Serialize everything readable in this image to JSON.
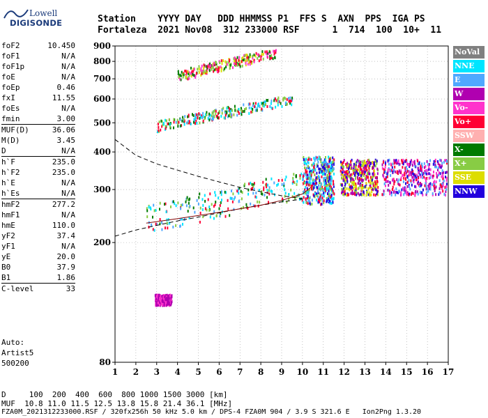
{
  "logo": {
    "line1": "Lowell",
    "line2": "DIGISONDE"
  },
  "header": {
    "labels": "Station    YYYY DAY   DDD HHMMSS P1  FFS S  AXN  PPS  IGA PS",
    "values": "Fortaleza  2021 Nov08  312 233000 RSF      1  714  100  10+  11"
  },
  "params": [
    {
      "k": "foF2",
      "v": "10.450",
      "sep": false
    },
    {
      "k": "foF1",
      "v": "N/A",
      "sep": false
    },
    {
      "k": "foF1p",
      "v": "N/A",
      "sep": false
    },
    {
      "k": "foE",
      "v": "N/A",
      "sep": false
    },
    {
      "k": "foEp",
      "v": "0.46",
      "sep": false
    },
    {
      "k": "fxI",
      "v": "11.55",
      "sep": false
    },
    {
      "k": "foEs",
      "v": "N/A",
      "sep": false
    },
    {
      "k": "fmin",
      "v": "3.00",
      "sep": false
    },
    {
      "k": "MUF(D)",
      "v": "36.06",
      "sep": true
    },
    {
      "k": "M(D)",
      "v": "3.45",
      "sep": false
    },
    {
      "k": "D",
      "v": "N/A",
      "sep": false
    },
    {
      "k": "h`F",
      "v": "235.0",
      "sep": true
    },
    {
      "k": "h`F2",
      "v": "235.0",
      "sep": false
    },
    {
      "k": "h`E",
      "v": "N/A",
      "sep": false
    },
    {
      "k": "h`Es",
      "v": "N/A",
      "sep": false
    },
    {
      "k": "hmF2",
      "v": "277.2",
      "sep": true
    },
    {
      "k": "hmF1",
      "v": "N/A",
      "sep": false
    },
    {
      "k": "hmE",
      "v": "110.0",
      "sep": false
    },
    {
      "k": "yF2",
      "v": "37.4",
      "sep": false
    },
    {
      "k": "yF1",
      "v": "N/A",
      "sep": false
    },
    {
      "k": "yE",
      "v": "20.0",
      "sep": false
    },
    {
      "k": "B0",
      "v": "37.9",
      "sep": false
    },
    {
      "k": "B1",
      "v": "1.86",
      "sep": false
    },
    {
      "k": "C-level",
      "v": "33",
      "sep": true
    }
  ],
  "auto": {
    "line1": "Auto:",
    "line2": "Artist5",
    "line3": "500200"
  },
  "legend": [
    {
      "label": "NoVal",
      "color": "#808080"
    },
    {
      "label": "NNE",
      "color": "#00e5ff"
    },
    {
      "label": "E",
      "color": "#4fa8ff"
    },
    {
      "label": "W",
      "color": "#b000b0"
    },
    {
      "label": "Vo-",
      "color": "#ff33cc"
    },
    {
      "label": "Vo+",
      "color": "#ff0033"
    },
    {
      "label": "SSW",
      "color": "#ffb0b0"
    },
    {
      "label": "X-",
      "color": "#007a00"
    },
    {
      "label": "X+",
      "color": "#88cc44"
    },
    {
      "label": "SSE",
      "color": "#dddd00"
    },
    {
      "label": "NNW",
      "color": "#2200dd"
    }
  ],
  "footer": {
    "d_line": "D     100  200  400  600  800 1000 1500 3000 [km]",
    "muf_line": "MUF  10.8 11.0 11.5 12.5 13.8 15.8 21.4 36.1 [MHz]",
    "file_line": "FZA0M_2021312233000.RSF / 320fx256h 50 kHz 5.0 km / DPS-4 FZA0M 904 / 3.9 S 321.6 E   Ion2Png 1.3.20"
  },
  "chart_data": {
    "type": "scatter",
    "xlabel": "",
    "ylabel": "",
    "xlim": [
      1,
      17
    ],
    "ylim": [
      80,
      900
    ],
    "xticks": [
      1,
      2,
      3,
      4,
      5,
      6,
      7,
      8,
      9,
      10,
      11,
      12,
      13,
      14,
      15,
      16,
      17
    ],
    "yticks": [
      80,
      200,
      300,
      400,
      500,
      600,
      700,
      800,
      900
    ],
    "y_scale": "log",
    "grid": true,
    "legend_placement": "right",
    "traces": [
      {
        "name": "F2 trace",
        "x_range": [
          2.5,
          10.6
        ],
        "height_start": 240,
        "height_end": 320,
        "colors": [
          "#ff0033",
          "#88cc44",
          "#4fa8ff",
          "#00e5ff",
          "#007a00"
        ]
      },
      {
        "name": "F2 spread",
        "x_range": [
          10.0,
          11.5
        ],
        "height_range": [
          270,
          390
        ],
        "colors": [
          "#2200dd",
          "#4fa8ff",
          "#ff0033",
          "#00e5ff",
          "#88cc44"
        ]
      },
      {
        "name": "F2 spread",
        "x_range": [
          11.8,
          13.6
        ],
        "height_range": [
          290,
          380
        ],
        "colors": [
          "#ff0033",
          "#2200dd",
          "#88cc44",
          "#b000b0",
          "#dddd00"
        ]
      },
      {
        "name": "F2 spread",
        "x_range": [
          13.8,
          16.9
        ],
        "height_range": [
          290,
          380
        ],
        "colors": [
          "#2200dd",
          "#ff0033",
          "#b000b0",
          "#ff33cc",
          "#4fa8ff"
        ]
      },
      {
        "name": "second hop",
        "x_range": [
          3.0,
          9.5
        ],
        "height_start": 490,
        "height_end": 600,
        "colors": [
          "#00e5ff",
          "#4fa8ff",
          "#ff0033",
          "#88cc44",
          "#007a00"
        ]
      },
      {
        "name": "third hop",
        "x_range": [
          4.0,
          8.7
        ],
        "height_start": 720,
        "height_end": 860,
        "colors": [
          "#ff0033",
          "#88cc44",
          "#007a00",
          "#ff33cc",
          "#dddd00"
        ]
      },
      {
        "name": "low echo",
        "x_range": [
          2.9,
          3.7
        ],
        "height_start": 130,
        "height_end": 130,
        "colors": [
          "#b000b0",
          "#ff33cc"
        ]
      }
    ],
    "lines": [
      {
        "name": "profile upper",
        "style": "dashed",
        "x": [
          1,
          2,
          3,
          4,
          5,
          6,
          7,
          8,
          9,
          10
        ],
        "y": [
          440,
          390,
          365,
          348,
          332,
          318,
          305,
          295,
          286,
          280
        ]
      },
      {
        "name": "profile lower",
        "style": "dashed",
        "x": [
          1,
          2,
          3,
          4,
          5,
          6,
          7,
          8,
          9,
          10
        ],
        "y": [
          210,
          220,
          228,
          236,
          243,
          251,
          259,
          266,
          273,
          279
        ]
      },
      {
        "name": "F2 fit",
        "style": "solid",
        "x": [
          2.5,
          4,
          6,
          8,
          9,
          10,
          10.4
        ],
        "y": [
          232,
          240,
          252,
          266,
          276,
          290,
          305
        ]
      }
    ]
  }
}
